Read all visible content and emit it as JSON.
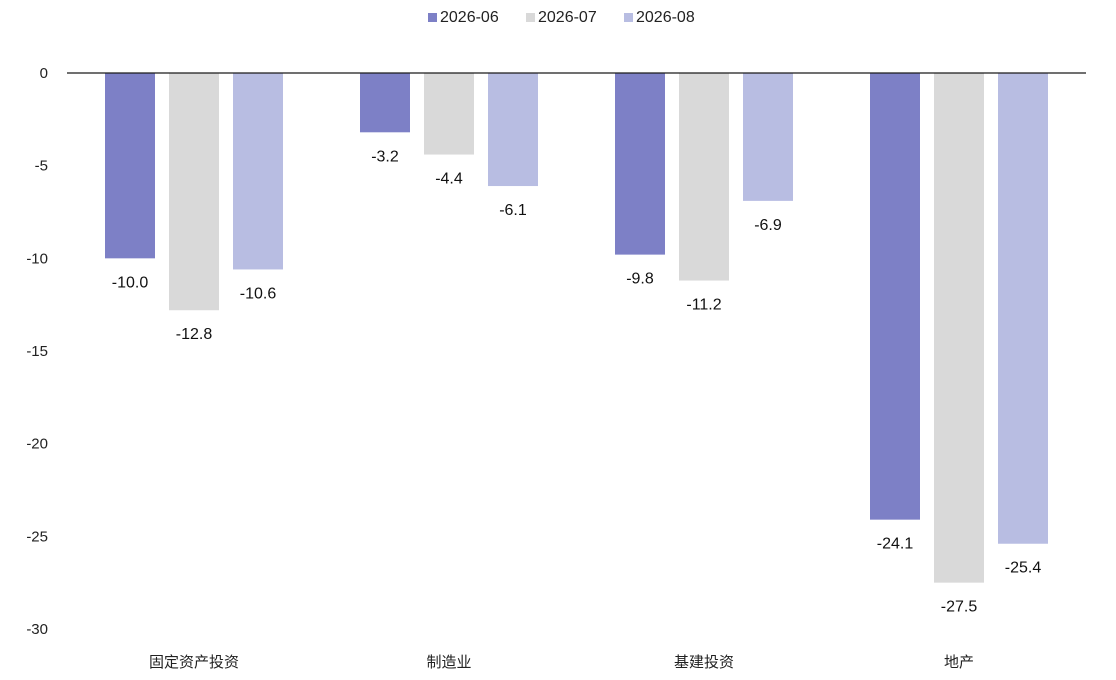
{
  "chart_data": {
    "type": "bar",
    "categories": [
      "固定资产投资",
      "制造业",
      "基建投资",
      "地产"
    ],
    "series": [
      {
        "name": "2026-06",
        "color": "#7d80c6",
        "values": [
          -10.0,
          -3.2,
          -9.8,
          -24.1
        ],
        "labels": [
          "-10.0",
          "-3.2",
          "-9.8",
          "-24.1"
        ]
      },
      {
        "name": "2026-07",
        "color": "#d9d9d9",
        "values": [
          -12.8,
          -4.4,
          -11.2,
          -27.5
        ],
        "labels": [
          "-12.8",
          "-4.4",
          "-11.2",
          "-27.5"
        ]
      },
      {
        "name": "2026-08",
        "color": "#b8bde2",
        "values": [
          -10.6,
          -6.1,
          -6.9,
          -25.4
        ],
        "labels": [
          "-10.6",
          "-6.1",
          "-6.9",
          "-25.4"
        ]
      }
    ],
    "yticks": [
      "0",
      "-5",
      "-10",
      "-15",
      "-20",
      "-25",
      "-30"
    ],
    "ylim": [
      -30,
      0
    ],
    "grid": false,
    "legend_position": "top-center",
    "title": "",
    "xlabel": "",
    "ylabel": ""
  }
}
